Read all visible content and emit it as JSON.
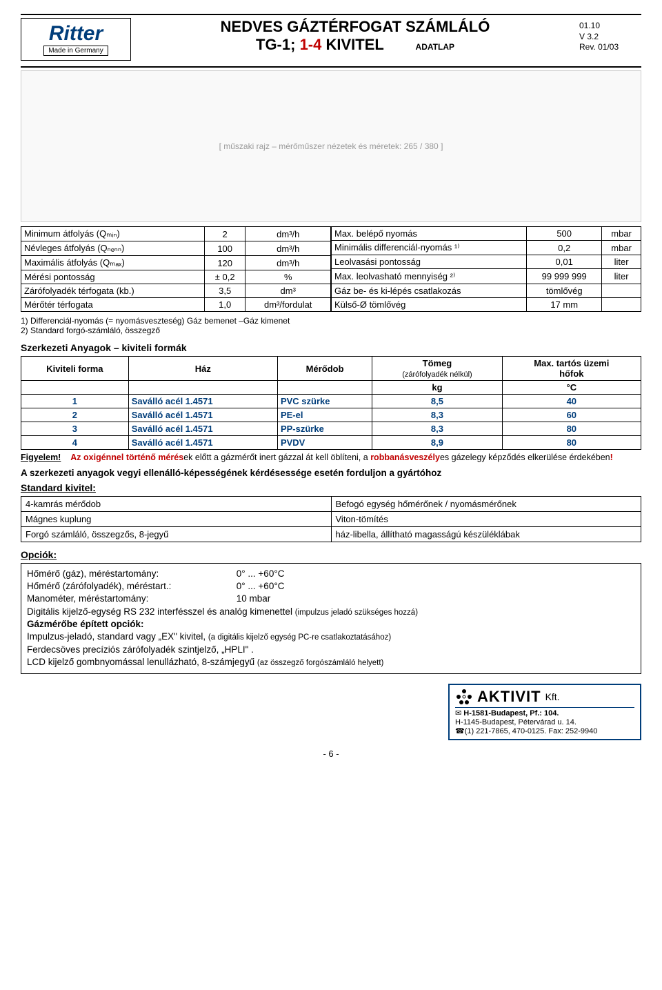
{
  "header": {
    "logo_brand": "Ritter",
    "logo_sub": "Made in Germany",
    "title_line1": "NEDVES GÁZTÉRFOGAT SZÁMLÁLÓ",
    "title_line2_a": "TG-1; ",
    "title_line2_b": "1-4",
    "title_line2_c": " KIVITEL",
    "adatlap": "ADATLAP",
    "rev1": "01.10",
    "rev2": "V 3.2",
    "rev3": "Rev. 01/03"
  },
  "diagram": {
    "placeholder": "[ műszaki rajz – mérőműszer nézetek és méretek: 265 / 380 ]"
  },
  "left_params": [
    {
      "label": "Minimum átfolyás (Qₘᵢₙ)",
      "val": "2",
      "unit": "dm³/h"
    },
    {
      "label": "Névleges átfolyás (Qₙₑₙₙ)",
      "val": "100",
      "unit": "dm³/h"
    },
    {
      "label": "Maximális átfolyás (Qₘₐₓ)",
      "val": "120",
      "unit": "dm³/h"
    },
    {
      "label": "Mérési pontosság",
      "val": "± 0,2",
      "unit": "%"
    },
    {
      "label": "Zárófolyadék térfogata (kb.)",
      "val": "3,5",
      "unit": "dm³"
    },
    {
      "label": "Mérőtér térfogata",
      "val": "1,0",
      "unit": "dm³/fordulat"
    }
  ],
  "right_params": [
    {
      "label": "Max. belépő nyomás",
      "val": "500",
      "unit": "mbar"
    },
    {
      "label": "Minimális differenciál-nyomás ¹⁾",
      "val": "0,2",
      "unit": "mbar"
    },
    {
      "label": "Leolvasási pontosság",
      "val": "0,01",
      "unit": "liter"
    },
    {
      "label": "Max. leolvasható mennyiség ²⁾",
      "val": "99 999 999",
      "unit": "liter"
    },
    {
      "label": "Gáz be- és ki-lépés csatlakozás",
      "val": "tömlővég",
      "unit": ""
    },
    {
      "label": "Külső-Ø tömlővég",
      "val": "17 mm",
      "unit": ""
    }
  ],
  "notes": {
    "n1": "1) Differenciál-nyomás (= nyomásveszteség) Gáz bemenet –Gáz kimenet",
    "n2": "2) Standard forgó-számláló, összegző"
  },
  "materials": {
    "title": "Szerkezeti Anyagok – kiviteli formák",
    "headers": {
      "forma": "Kiviteli forma",
      "haz": "Ház",
      "dob": "Mérődob",
      "tomeg_a": "Tömeg",
      "tomeg_b": "(zárófolyadék nélkül)",
      "max_a": "Max. tartós üzemi",
      "max_b": "hőfok"
    },
    "unit_row": {
      "kg": "kg",
      "c": "°C"
    },
    "rows": [
      {
        "n": "1",
        "haz": "Saválló acél  1.4571",
        "dob": "PVC szürke",
        "kg": "8,5",
        "c": "40"
      },
      {
        "n": "2",
        "haz": "Saválló acél  1.4571",
        "dob": "PE-el",
        "kg": "8,3",
        "c": "60"
      },
      {
        "n": "3",
        "haz": "Saválló acél  1.4571",
        "dob": "PP-szürke",
        "kg": "8,3",
        "c": "80"
      },
      {
        "n": "4",
        "haz": "Saválló acél  1.4571",
        "dob": "PVDV",
        "kg": "8,9",
        "c": "80"
      }
    ],
    "warning_label": "Figyelem!",
    "warning_a": "Az oxigénnel történő mérés",
    "warning_b": "ek előtt a gázmérőt inert gázzal át kell öblíteni, a ",
    "warning_c": "robbanásveszély",
    "warning_d": "es gázelegy képződés elkerülése érdekében",
    "warning_e": "!"
  },
  "advice": "A szerkezeti anyagok vegyi ellenálló-képességének kérdésessége esetén forduljon a gyártóhoz",
  "standard_kivitel": {
    "title": "Standard kivitel:",
    "rows": [
      {
        "l": "4-kamrás mérődob",
        "r": "Befogó egység hőmérőnek / nyomásmérőnek"
      },
      {
        "l": "Mágnes kuplung",
        "r": "Viton-tömítés"
      },
      {
        "l": "Forgó számláló, összegzős, 8-jegyű",
        "r": "ház-libella, állítható magasságú készüléklábak"
      }
    ]
  },
  "opciok": {
    "title": "Opciók:",
    "line1_a": "Hőmérő (gáz), méréstartomány:",
    "line1_b": "0° ... +60°C",
    "line2_a": "Hőmérő (zárófolyadék), méréstart.:",
    "line2_b": "0° ... +60°C",
    "line3_a": "Manométer, méréstartomány:",
    "line3_b": "10 mbar",
    "line4_a": "Digitális kijelző-egység RS 232 interfésszel és analóg kimenettel ",
    "line4_b": "(impulzus jeladó szükséges hozzá)",
    "line5": "Gázmérőbe épített opciók:",
    "line6_a": "Impulzus-jeladó, standard vagy „EX\" kivitel, ",
    "line6_b": "(a digitális kijelző egység PC-re csatlakoztatásához)",
    "line7": "Ferdecsöves precíziós zárófolyadék szintjelző, „HPLI\" .",
    "line8_a": "LCD kijelző gombnyomással lenullázható, 8-számjegyű ",
    "line8_b": "(az összegző forgószámláló helyett)"
  },
  "footer": {
    "company": "AKTIVIT",
    "kft": "Kft.",
    "addr1": "H-1581-Budapest, Pf.: 104.",
    "addr2": "H-1145-Budapest, Pétervárad u. 14.",
    "addr3": "☎(1) 221-7865, 470-0125. Fax: 252-9940"
  },
  "page_num": "- 6 -"
}
